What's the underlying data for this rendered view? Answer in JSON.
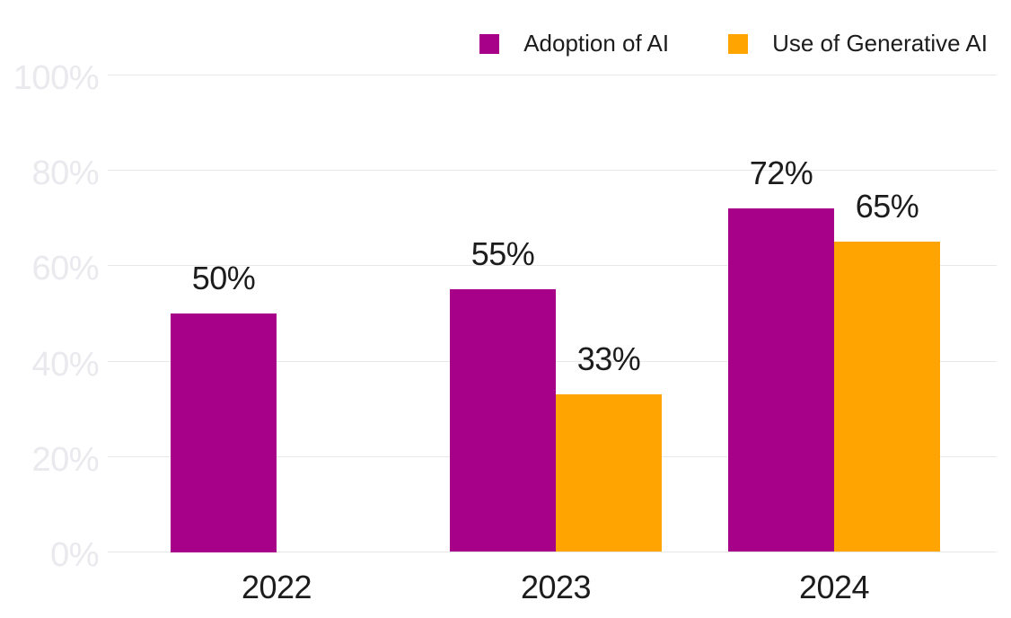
{
  "chart_data": {
    "type": "bar",
    "title": "",
    "categories": [
      "2022",
      "2023",
      "2024"
    ],
    "series": [
      {
        "name": "Adoption of AI",
        "color": "#A80189",
        "values": [
          50,
          55,
          72
        ],
        "labels": [
          "50%",
          "55%",
          "72%"
        ]
      },
      {
        "name": "Use of Generative AI",
        "color": "#FFA400",
        "values": [
          null,
          33,
          65
        ],
        "labels": [
          null,
          "33%",
          "65%"
        ]
      }
    ],
    "y_axis": {
      "min": 0,
      "max": 100,
      "tick_values": [
        0,
        20,
        40,
        60,
        80,
        100
      ],
      "tick_labels": [
        "0%",
        "20%",
        "40%",
        "60%",
        "80%",
        "100%"
      ],
      "grid": true
    },
    "legend_position": "top-right",
    "colors": {
      "grid": "#E8E8E9",
      "y_tick_text": "#E9E9EE",
      "label_text": "#1C1C1C",
      "background": "#FFFFFF"
    }
  }
}
